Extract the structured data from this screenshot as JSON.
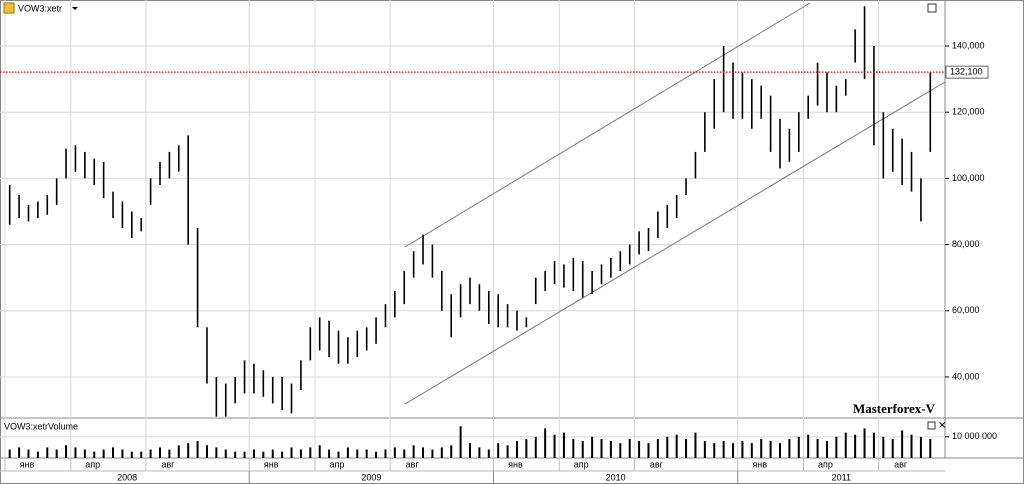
{
  "chart_data": {
    "type": "ohlc",
    "title": "VOW3:xetr",
    "watermark": "Masterforex-V",
    "color": "#000000",
    "categories": [
      "янв",
      null,
      null,
      null,
      null,
      null,
      null,
      "апр",
      null,
      null,
      null,
      null,
      null,
      null,
      null,
      "авг",
      null,
      null,
      null,
      null,
      null,
      null,
      null,
      null,
      null,
      null,
      "янв",
      null,
      null,
      null,
      null,
      null,
      null,
      "апр",
      null,
      null,
      null,
      null,
      null,
      null,
      null,
      "авг",
      null,
      null,
      null,
      null,
      null,
      null,
      null,
      null,
      null,
      null,
      "янв",
      null,
      null,
      null,
      null,
      null,
      null,
      "апр",
      null,
      null,
      null,
      null,
      null,
      null,
      null,
      "авг",
      null,
      null,
      null,
      null,
      null,
      null,
      null,
      null,
      null,
      null,
      "янв",
      null,
      null,
      null,
      null,
      null,
      null,
      "апр",
      null,
      null,
      null,
      null,
      null,
      null,
      null,
      "авг",
      null,
      null,
      null,
      null,
      null
    ],
    "year_labels": [
      "2008",
      "2009",
      "2010",
      "2011"
    ],
    "high": [
      98000,
      95000,
      92000,
      93000,
      95000,
      100000,
      109000,
      110000,
      108000,
      106000,
      105000,
      96000,
      93000,
      90000,
      88000,
      100000,
      105000,
      108000,
      110000,
      113000,
      85000,
      55000,
      40000,
      38000,
      40000,
      45000,
      44000,
      42000,
      40000,
      40000,
      38000,
      45000,
      55000,
      58000,
      57000,
      54000,
      52000,
      54000,
      55000,
      58000,
      62000,
      66000,
      72000,
      78000,
      83000,
      80000,
      72000,
      65000,
      68000,
      70000,
      68000,
      66000,
      65000,
      62000,
      60000,
      58000,
      70000,
      72000,
      75000,
      74000,
      76000,
      75000,
      72000,
      74000,
      76000,
      78000,
      80000,
      84000,
      85000,
      90000,
      92000,
      95000,
      100000,
      108000,
      120000,
      130000,
      140000,
      135000,
      132000,
      130000,
      128000,
      125000,
      118000,
      115000,
      120000,
      125000,
      135000,
      132000,
      128000,
      130000,
      145000,
      152000,
      140000,
      120000,
      115000,
      112000,
      108000,
      100000,
      132000
    ],
    "low": [
      86000,
      88000,
      87000,
      88000,
      89000,
      92000,
      100000,
      102000,
      100000,
      98000,
      94000,
      88000,
      85000,
      82000,
      84000,
      92000,
      98000,
      100000,
      102000,
      80000,
      55000,
      38000,
      28000,
      28000,
      32000,
      35000,
      35000,
      34000,
      32000,
      30000,
      29000,
      36000,
      45000,
      48000,
      46000,
      44000,
      44000,
      46000,
      48000,
      50000,
      55000,
      58000,
      62000,
      70000,
      74000,
      70000,
      60000,
      52000,
      58000,
      62000,
      60000,
      56000,
      55000,
      55000,
      54000,
      55000,
      62000,
      66000,
      68000,
      67000,
      66000,
      64000,
      65000,
      68000,
      70000,
      72000,
      74000,
      77000,
      78000,
      82000,
      85000,
      88000,
      95000,
      100000,
      108000,
      115000,
      120000,
      118000,
      118000,
      115000,
      118000,
      108000,
      103000,
      105000,
      108000,
      118000,
      122000,
      120000,
      120000,
      125000,
      135000,
      130000,
      110000,
      100000,
      102000,
      98000,
      96000,
      87000,
      108000
    ],
    "ylim": [
      28500,
      153900
    ],
    "yticks": [
      {
        "value": 40000,
        "label": "40,000"
      },
      {
        "value": 60000,
        "label": "60,000"
      },
      {
        "value": 80000,
        "label": "80,000"
      },
      {
        "value": 100000,
        "label": "100,000"
      },
      {
        "value": 120000,
        "label": "120,000"
      },
      {
        "value": 140000,
        "label": "140,000"
      }
    ],
    "last_price": {
      "value": 132100,
      "label": "132,100",
      "color": "#d00000"
    },
    "grid": true,
    "volume": {
      "title": "VOW3:xetrVolume",
      "values": [
        4000000,
        5000000,
        4000000,
        3000000,
        5000000,
        4000000,
        6000000,
        5000000,
        4000000,
        3000000,
        4000000,
        5000000,
        4000000,
        3000000,
        3000000,
        4000000,
        5000000,
        4000000,
        6000000,
        7000000,
        8000000,
        6000000,
        5000000,
        4000000,
        3000000,
        3000000,
        4000000,
        3000000,
        4000000,
        3000000,
        5000000,
        4000000,
        5000000,
        6000000,
        4000000,
        3000000,
        5000000,
        4000000,
        4000000,
        3000000,
        4000000,
        5000000,
        4000000,
        6000000,
        5000000,
        4000000,
        5000000,
        6000000,
        15000000,
        7000000,
        5000000,
        4000000,
        7000000,
        6000000,
        8000000,
        9000000,
        10000000,
        14000000,
        11000000,
        12000000,
        9000000,
        8000000,
        10000000,
        9000000,
        8000000,
        7000000,
        9000000,
        8000000,
        7000000,
        9000000,
        10000000,
        11000000,
        9000000,
        12000000,
        8000000,
        7000000,
        8000000,
        7000000,
        8000000,
        7000000,
        9000000,
        8000000,
        7000000,
        9000000,
        10000000,
        11000000,
        9000000,
        8000000,
        10000000,
        12000000,
        11000000,
        14000000,
        12000000,
        10000000,
        9000000,
        13000000,
        11000000,
        10000000,
        9000000
      ],
      "ylim": [
        0,
        17000000
      ],
      "yticks": [
        {
          "value": 10000000,
          "label": "10 000 000"
        }
      ]
    }
  }
}
